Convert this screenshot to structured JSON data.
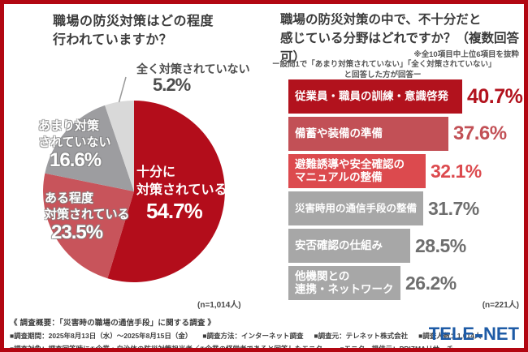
{
  "colors": {
    "frame": "#b20712",
    "logo_blue": "#1e5ba6",
    "title_text": "#3b3b3b",
    "footer_text": "#3d3d3d"
  },
  "chart_data": [
    {
      "type": "pie",
      "title": "職場の防災対策はどの程度行われていますか？",
      "title_lines": [
        "職場の防災対策はどの程度",
        "行われていますか？"
      ],
      "sample_note": "(n=1,014人)",
      "direction": "clockwise",
      "start_angle_deg": 0,
      "segments": [
        {
          "label": "十分に対策されている",
          "label_lines": [
            "十分に",
            "対策されている"
          ],
          "value": 54.7,
          "pct_label": "54.7%",
          "color": "#b30d1b"
        },
        {
          "label": "ある程度対策されている",
          "label_lines": [
            "ある程度",
            "対策されている"
          ],
          "value": 23.5,
          "pct_label": "23.5%",
          "color": "#c8545b"
        },
        {
          "label": "あまり対策されていない",
          "label_lines": [
            "あまり対策",
            "されていない"
          ],
          "value": 16.6,
          "pct_label": "16.6%",
          "color": "#9d9da0"
        },
        {
          "label": "全く対策されていない",
          "label_lines": [
            "全く対策されていない"
          ],
          "value": 5.2,
          "pct_label": "5.2%",
          "color": "#d9d9d9"
        }
      ]
    },
    {
      "type": "bar",
      "orientation": "horizontal",
      "title": "職場の防災対策の中で、不十分だと感じている分野はどれですか？（複数回答可）",
      "title_lines": [
        "職場の防災対策の中で、不十分だと",
        "感じている分野はどれですか？（複数回答可）"
      ],
      "note": "※全10項目中上位6項目を抜粋",
      "subnote_lines": [
        "ー設問1で「あまり対策されていない」「全く対策されていない」",
        "と回答した方が回答ー"
      ],
      "sample_note": "(n=221人)",
      "categories": [
        "従業員・職員の訓練・意識啓発",
        "備蓄や装備の準備",
        "避難誘導や安全確認のマニュアルの整備",
        "災害時用の通信手段の整備",
        "安否確認の仕組み",
        "他機関との連携・ネットワーク"
      ],
      "values": [
        40.7,
        37.6,
        32.1,
        31.7,
        28.5,
        26.2
      ],
      "xlim": [
        0,
        45
      ],
      "bars": [
        {
          "label_lines": [
            "従業員・職員の訓練・意識啓発"
          ],
          "value": 40.7,
          "pct_label": "40.7%",
          "bar_color": "#b2121d",
          "pct_color": "#b2121d"
        },
        {
          "label_lines": [
            "備蓄や装備の準備"
          ],
          "value": 37.6,
          "pct_label": "37.6%",
          "bar_color": "#c25056",
          "pct_color": "#c25056"
        },
        {
          "label_lines": [
            "避難誘導や安全確認の",
            "マニュアルの整備"
          ],
          "value": 32.1,
          "pct_label": "32.1%",
          "bar_color": "#dc4a4e",
          "pct_color": "#dc4a4e"
        },
        {
          "label_lines": [
            "災害時用の通信手段の整備"
          ],
          "value": 31.7,
          "pct_label": "31.7%",
          "bar_color": "#a7a7a7",
          "pct_color": "#6e6e6e"
        },
        {
          "label_lines": [
            "安否確認の仕組み"
          ],
          "value": 28.5,
          "pct_label": "28.5%",
          "bar_color": "#a7a7a7",
          "pct_color": "#6e6e6e"
        },
        {
          "label_lines": [
            "他機関との",
            "連携・ネットワーク"
          ],
          "value": 26.2,
          "pct_label": "26.2%",
          "bar_color": "#a7a7a7",
          "pct_color": "#6e6e6e"
        }
      ]
    }
  ],
  "footer": {
    "heading": "《 調査概要：「災害時の職場の通信手段」に関する調査 》",
    "line2_items": [
      "■調査期間：2025年8月13日（水）～2025年8月15日（金）",
      "■調査方法：インターネット調査",
      "■調査元：テレネット株式会社",
      "■調査人数：1,014人"
    ],
    "line3_items": [
      "■調査対象：調査回答時に①企業・自治体の防災対策担当者／②企業の経営者であると回答したモニター",
      "■モニター提供元：PRIZMAリサーチ"
    ],
    "logo": {
      "text": "TELENET",
      "parts": [
        "TELE",
        "NET"
      ]
    }
  }
}
